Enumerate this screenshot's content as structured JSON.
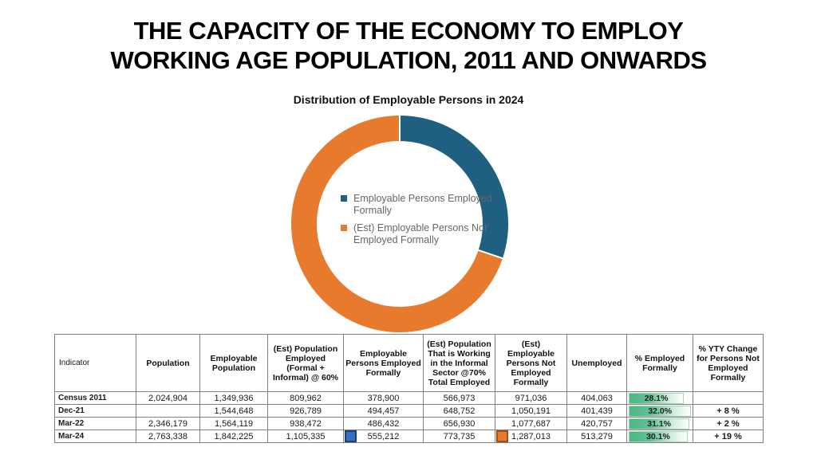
{
  "slide": {
    "title_lines": [
      "THE CAPACITY OF THE ECONOMY TO EMPLOY",
      "WORKING AGE POPULATION, 2011 AND ONWARDS"
    ]
  },
  "chart_data": {
    "type": "pie",
    "subtype": "donut",
    "title": "Distribution of Employable Persons in 2024",
    "start_angle_deg": 0,
    "direction": "clockwise",
    "slices": [
      {
        "label": "Employable Persons Employed Formally",
        "value": 555212,
        "pct": 30.1,
        "color": "#1F6080"
      },
      {
        "label": "(Est) Employable Persons Not Employed Formally",
        "value": 1287013,
        "pct": 69.9,
        "color": "#E87A2E"
      }
    ],
    "legend_position": "center",
    "legend_text_color": "#666666"
  },
  "table": {
    "columns": [
      "Indicator",
      "Population",
      "Employable Population",
      "(Est) Population Employed (Formal + Informal) @ 60%",
      "Employable Persons Employed Formally",
      "(Est) Population That is Working in the Informal Sector @70% Total Employed",
      "(Est) Employable Persons Not Employed Formally",
      "Unemployed",
      "% Employed Formally",
      "% YTY Change for Persons Not Employed Formally"
    ],
    "rows": [
      {
        "indicator": "Census 2011",
        "values": [
          "2,024,904",
          "1,349,936",
          "809,962",
          "378,900",
          "566,973",
          "971,036",
          "404,063"
        ],
        "pct_employed_formally": "28.1%",
        "pct_numeric": 28.1,
        "yty_change": ""
      },
      {
        "indicator": "Dec-21",
        "values": [
          "",
          "1,544,648",
          "926,789",
          "494,457",
          "648,752",
          "1,050,191",
          "401,439"
        ],
        "pct_employed_formally": "32.0%",
        "pct_numeric": 32.0,
        "yty_change": "+ 8 %"
      },
      {
        "indicator": "Mar-22",
        "values": [
          "2,346,179",
          "1,564,119",
          "938,472",
          "486,432",
          "656,930",
          "1,077,687",
          "420,757"
        ],
        "pct_employed_formally": "31.1%",
        "pct_numeric": 31.1,
        "yty_change": "+ 2 %"
      },
      {
        "indicator": "Mar-24",
        "values": [
          "2,763,338",
          "1,842,225",
          "1,105,335",
          "555,212",
          "773,735",
          "1,287,013",
          "513,279"
        ],
        "pct_employed_formally": "30.1%",
        "pct_numeric": 30.1,
        "yty_change": "+ 19 %",
        "series_markers": [
          {
            "value_index": 3,
            "fill": "#3A6CC5",
            "border": "#17456B"
          },
          {
            "value_index": 5,
            "fill": "#E87A2E",
            "border": "#A04E14"
          }
        ]
      }
    ],
    "pct_bar_style": {
      "max_scale": 32.0,
      "fill": "#4CB685",
      "border": "#A5D7B6"
    }
  }
}
